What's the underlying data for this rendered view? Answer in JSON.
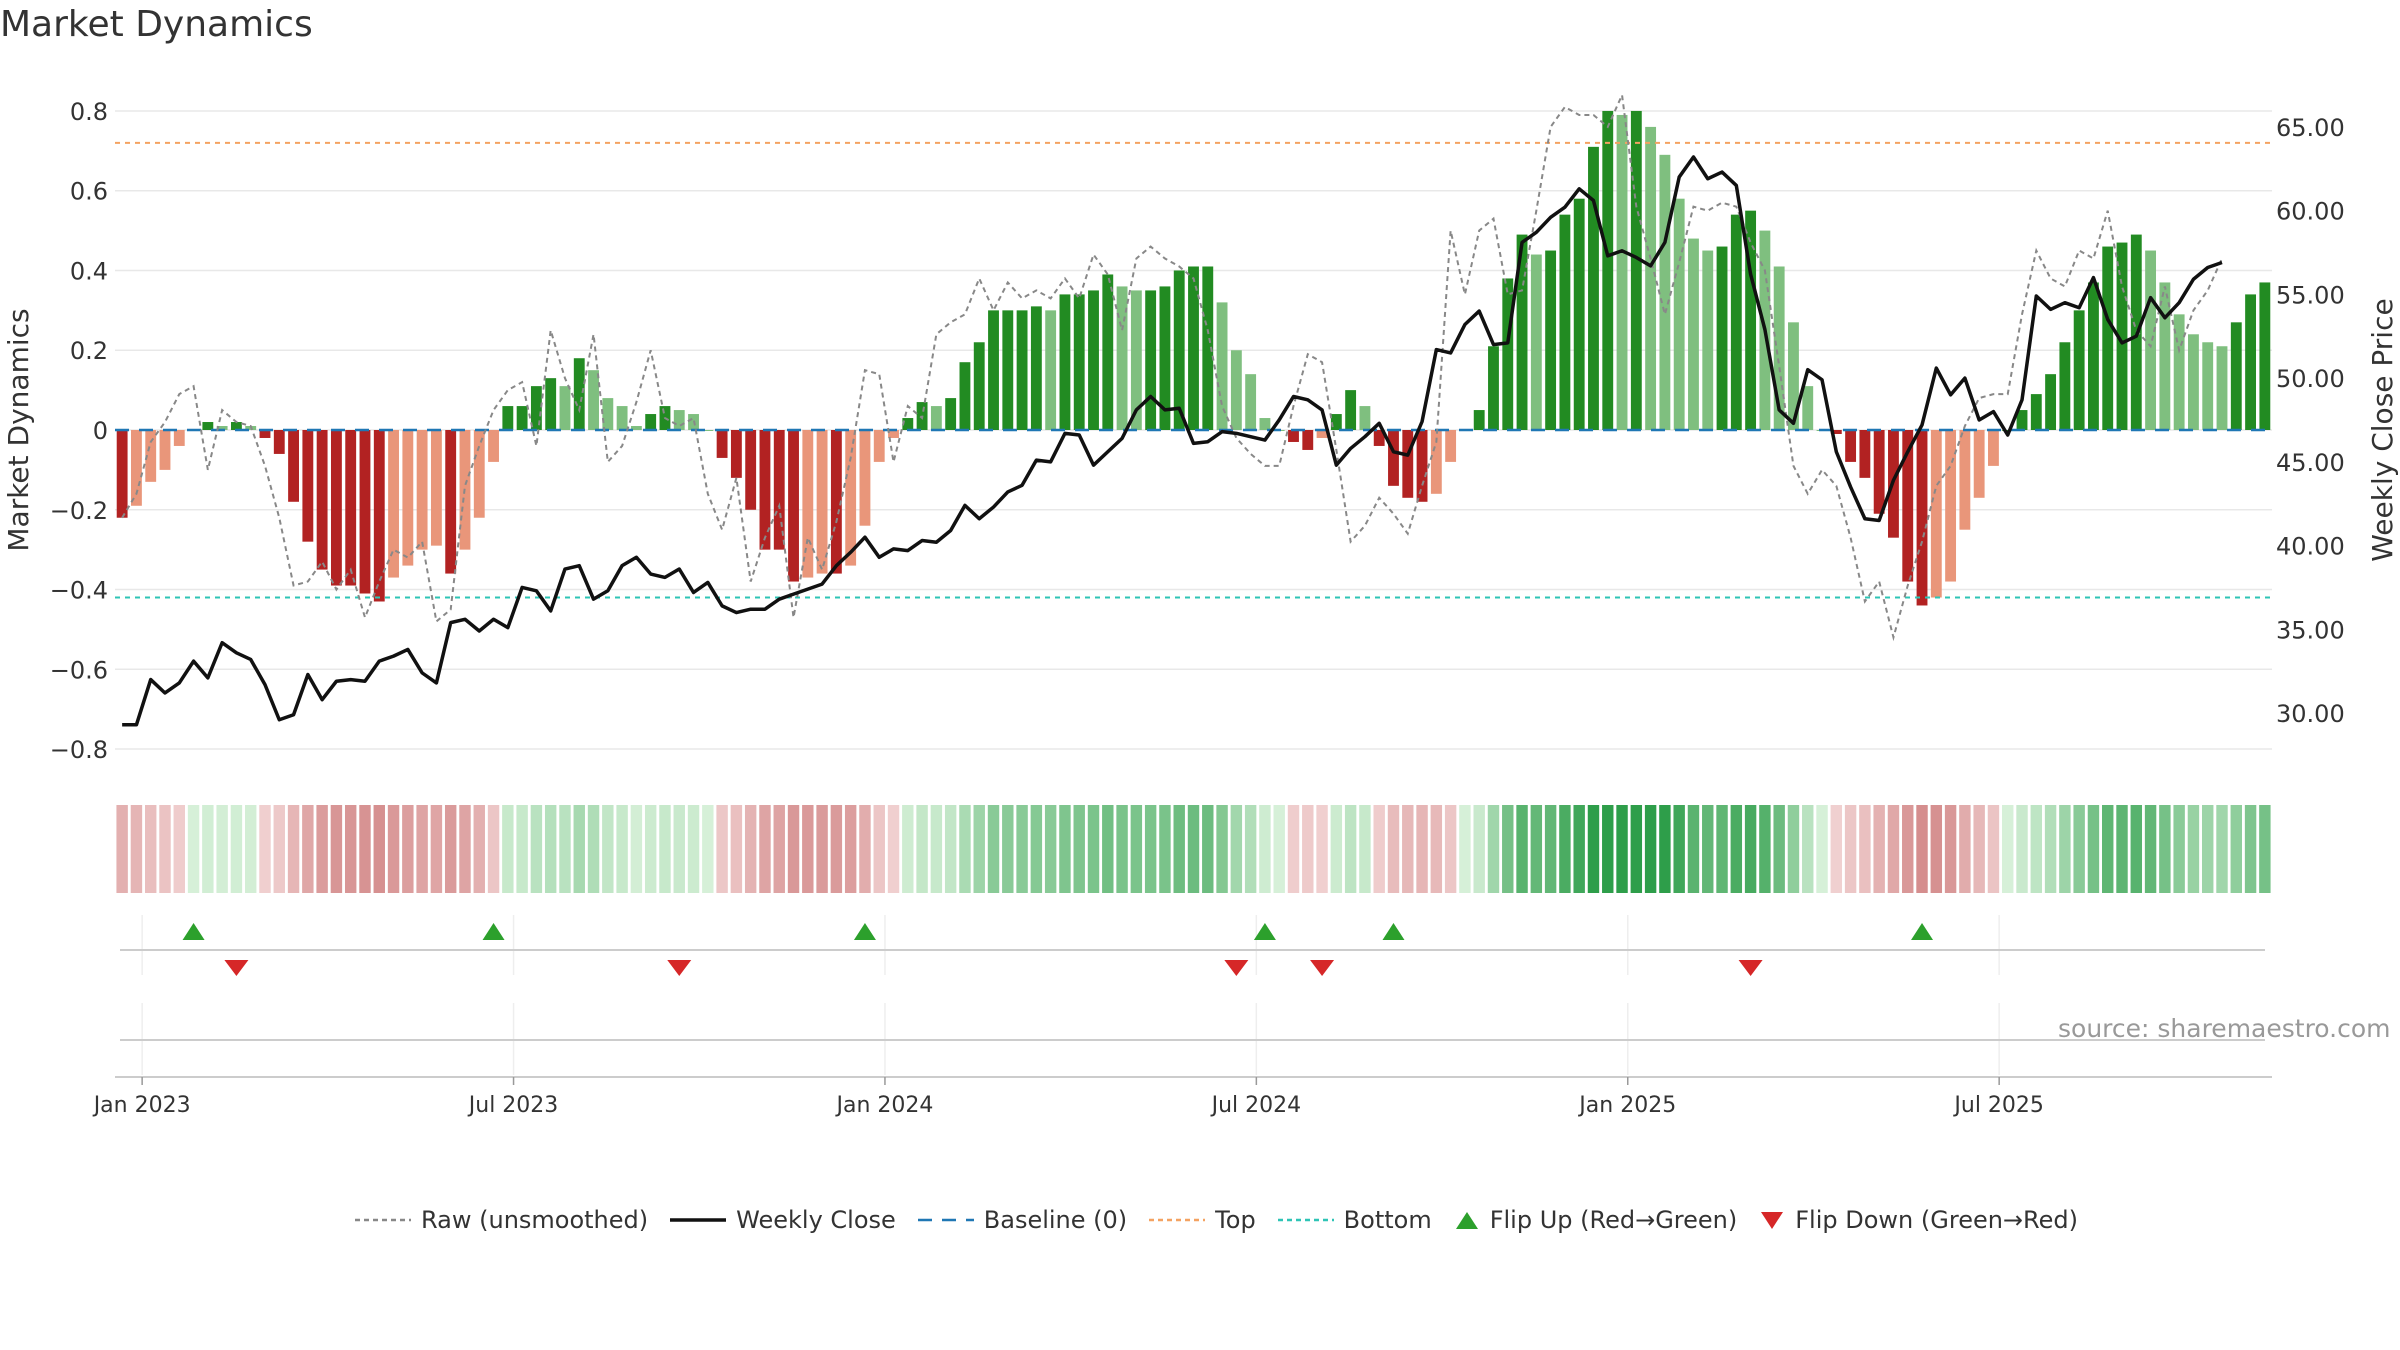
{
  "title": "Market Dynamics",
  "source": "source: sharemaestro.com",
  "colors": {
    "strong_green": "#228b22",
    "light_green": "#7fbf7f",
    "strong_red": "#b22222",
    "light_red": "#e9967a",
    "raw": "#888888",
    "close": "#111111",
    "baseline": "#1f77b4",
    "top": "#f4a261",
    "bottom": "#2ec4b6",
    "flip_up": "#2ca02c",
    "flip_down": "#d62728"
  },
  "legend": [
    {
      "key": "raw",
      "label": "Raw (unsmoothed)",
      "symbol": "dotted"
    },
    {
      "key": "close",
      "label": "Weekly Close",
      "symbol": "solid"
    },
    {
      "key": "baseline",
      "label": "Baseline (0)",
      "symbol": "dashed"
    },
    {
      "key": "top",
      "label": "Top",
      "symbol": "dotted"
    },
    {
      "key": "bottom",
      "label": "Bottom",
      "symbol": "dotted"
    },
    {
      "key": "flip_up",
      "label": "Flip Up (Red→Green)",
      "symbol": "up"
    },
    {
      "key": "flip_down",
      "label": "Flip Down (Green→Red)",
      "symbol": "down"
    }
  ],
  "chart_data": {
    "type": "bar",
    "ylabel": "Market Dynamics",
    "y2label": "Weekly Close Price",
    "ylim": [
      -0.84,
      0.84
    ],
    "y2lim": [
      26.9,
      66.9
    ],
    "yticks": [
      -0.8,
      -0.6,
      -0.4,
      -0.2,
      0,
      0.2,
      0.4,
      0.6,
      0.8
    ],
    "y2ticks": [
      30,
      35,
      40,
      45,
      50,
      55,
      60,
      65
    ],
    "xticks": [
      "Jan 2023",
      "Jul 2023",
      "Jan 2024",
      "Jul 2024",
      "Jan 2025",
      "Jul 2025"
    ],
    "xtick_weeks": [
      0,
      26,
      52,
      78,
      104,
      130
    ],
    "x_start": "2022-12-26",
    "top_level": 0.72,
    "bottom_level": -0.42,
    "baseline": 0,
    "grid": true,
    "legend_position": "bottom",
    "dynamics": [
      -0.22,
      -0.19,
      -0.13,
      -0.1,
      -0.04,
      0.0,
      0.02,
      0.01,
      0.02,
      0.01,
      -0.02,
      -0.06,
      -0.18,
      -0.28,
      -0.35,
      -0.39,
      -0.39,
      -0.41,
      -0.43,
      -0.37,
      -0.34,
      -0.3,
      -0.29,
      -0.36,
      -0.3,
      -0.22,
      -0.08,
      0.06,
      0.06,
      0.11,
      0.13,
      0.11,
      0.18,
      0.15,
      0.08,
      0.06,
      0.01,
      0.04,
      0.06,
      0.05,
      0.04,
      0.0,
      -0.07,
      -0.12,
      -0.2,
      -0.3,
      -0.3,
      -0.38,
      -0.37,
      -0.36,
      -0.36,
      -0.34,
      -0.24,
      -0.08,
      -0.02,
      0.03,
      0.07,
      0.06,
      0.08,
      0.17,
      0.22,
      0.3,
      0.3,
      0.3,
      0.31,
      0.3,
      0.34,
      0.34,
      0.35,
      0.39,
      0.36,
      0.35,
      0.35,
      0.36,
      0.4,
      0.41,
      0.41,
      0.32,
      0.2,
      0.14,
      0.03,
      0.0,
      -0.03,
      -0.05,
      -0.02,
      0.04,
      0.1,
      0.06,
      -0.04,
      -0.14,
      -0.17,
      -0.18,
      -0.16,
      -0.08,
      0.0,
      0.05,
      0.21,
      0.38,
      0.49,
      0.44,
      0.45,
      0.54,
      0.58,
      0.71,
      0.8,
      0.79,
      0.8,
      0.76,
      0.69,
      0.58,
      0.48,
      0.45,
      0.46,
      0.54,
      0.55,
      0.5,
      0.41,
      0.27,
      0.11,
      0.0,
      -0.01,
      -0.08,
      -0.12,
      -0.21,
      -0.27,
      -0.38,
      -0.44,
      -0.42,
      -0.38,
      -0.25,
      -0.17,
      -0.09,
      0.0,
      0.05,
      0.09,
      0.14,
      0.22,
      0.3,
      0.37,
      0.46,
      0.47,
      0.49,
      0.45,
      0.37,
      0.29,
      0.24,
      0.22,
      0.21,
      0.27,
      0.34,
      0.37
    ],
    "raw": [
      -0.22,
      -0.16,
      -0.03,
      0.02,
      0.09,
      0.11,
      -0.1,
      0.05,
      0.02,
      0.01,
      -0.09,
      -0.22,
      -0.39,
      -0.38,
      -0.33,
      -0.4,
      -0.35,
      -0.47,
      -0.38,
      -0.3,
      -0.32,
      -0.28,
      -0.48,
      -0.45,
      -0.14,
      -0.04,
      0.05,
      0.1,
      0.12,
      -0.04,
      0.25,
      0.13,
      0.05,
      0.24,
      -0.08,
      -0.04,
      0.07,
      0.2,
      0.03,
      0.01,
      0.03,
      -0.16,
      -0.25,
      -0.12,
      -0.38,
      -0.27,
      -0.19,
      -0.47,
      -0.27,
      -0.35,
      -0.23,
      -0.07,
      0.15,
      0.14,
      -0.08,
      0.06,
      0.03,
      0.24,
      0.27,
      0.29,
      0.38,
      0.3,
      0.37,
      0.33,
      0.35,
      0.33,
      0.38,
      0.33,
      0.44,
      0.39,
      0.25,
      0.43,
      0.46,
      0.43,
      0.41,
      0.38,
      0.25,
      0.06,
      -0.02,
      -0.06,
      -0.09,
      -0.09,
      0.06,
      0.19,
      0.17,
      -0.05,
      -0.28,
      -0.24,
      -0.17,
      -0.21,
      -0.26,
      -0.14,
      -0.03,
      0.5,
      0.34,
      0.5,
      0.53,
      0.34,
      0.35,
      0.55,
      0.76,
      0.81,
      0.79,
      0.79,
      0.76,
      0.84,
      0.56,
      0.43,
      0.29,
      0.42,
      0.56,
      0.55,
      0.57,
      0.56,
      0.47,
      0.4,
      0.16,
      -0.09,
      -0.16,
      -0.1,
      -0.14,
      -0.27,
      -0.43,
      -0.38,
      -0.52,
      -0.39,
      -0.28,
      -0.14,
      -0.09,
      0.01,
      0.08,
      0.09,
      0.09,
      0.29,
      0.45,
      0.38,
      0.36,
      0.45,
      0.43,
      0.55,
      0.36,
      0.25,
      0.21,
      0.36,
      0.2,
      0.3,
      0.35,
      0.43
    ]
  },
  "close_data": {
    "label": "Weekly Close",
    "prices": [
      29.3,
      29.3,
      32.0,
      31.2,
      31.8,
      33.1,
      32.1,
      34.2,
      33.6,
      33.2,
      31.7,
      29.6,
      29.9,
      32.3,
      30.8,
      31.9,
      32.0,
      31.9,
      33.1,
      33.4,
      33.8,
      32.4,
      31.8,
      35.4,
      35.6,
      34.9,
      35.6,
      35.1,
      37.5,
      37.3,
      36.1,
      38.6,
      38.8,
      36.8,
      37.3,
      38.8,
      39.3,
      38.3,
      38.1,
      38.6,
      37.2,
      37.8,
      36.4,
      36.0,
      36.2,
      36.2,
      36.8,
      37.1,
      37.4,
      37.7,
      38.8,
      39.6,
      40.5,
      39.3,
      39.8,
      39.7,
      40.3,
      40.2,
      40.9,
      42.4,
      41.6,
      42.3,
      43.2,
      43.6,
      45.1,
      45.0,
      46.7,
      46.6,
      44.8,
      45.6,
      46.4,
      48.1,
      48.9,
      48.1,
      48.2,
      46.1,
      46.2,
      46.8,
      46.7,
      46.5,
      46.3,
      47.5,
      48.9,
      48.7,
      48.1,
      44.8,
      45.8,
      46.5,
      47.3,
      45.6,
      45.4,
      47.4,
      51.7,
      51.5,
      53.2,
      54.0,
      52.0,
      52.1,
      58.1,
      58.7,
      59.6,
      60.2,
      61.3,
      60.6,
      57.3,
      57.6,
      57.2,
      56.7,
      58.1,
      62.0,
      63.2,
      61.9,
      62.3,
      61.5,
      56.2,
      52.9,
      48.1,
      47.3,
      50.5,
      49.9,
      45.6,
      43.5,
      41.6,
      41.5,
      43.9,
      45.6,
      47.2,
      50.6,
      49.0,
      50.0,
      47.5,
      48.0,
      46.6,
      48.7,
      54.9,
      54.1,
      54.5,
      54.2,
      56.0,
      53.5,
      52.1,
      52.5,
      54.8,
      53.6,
      54.5,
      55.9,
      56.6,
      56.9
    ]
  },
  "colorbar_data": {
    "intensity": [
      0.34,
      0.29,
      0.2,
      0.15,
      0.06,
      0.0,
      0.03,
      0.02,
      0.03,
      0.02,
      0.03,
      0.09,
      0.28,
      0.43,
      0.54,
      0.6,
      0.6,
      0.63,
      0.66,
      0.57,
      0.52,
      0.46,
      0.45,
      0.55,
      0.46,
      0.34,
      0.12,
      0.09,
      0.09,
      0.17,
      0.2,
      0.17,
      0.28,
      0.23,
      0.12,
      0.09,
      0.02,
      0.06,
      0.09,
      0.08,
      0.06,
      0.0,
      0.11,
      0.18,
      0.31,
      0.46,
      0.46,
      0.58,
      0.57,
      0.55,
      0.55,
      0.52,
      0.37,
      0.12,
      0.03,
      0.05,
      0.11,
      0.09,
      0.12,
      0.26,
      0.34,
      0.46,
      0.46,
      0.46,
      0.48,
      0.46,
      0.52,
      0.52,
      0.54,
      0.6,
      0.55,
      0.54,
      0.54,
      0.55,
      0.62,
      0.63,
      0.63,
      0.49,
      0.31,
      0.22,
      0.05,
      0.0,
      0.05,
      0.08,
      0.03,
      0.06,
      0.15,
      0.09,
      0.06,
      0.22,
      0.26,
      0.28,
      0.25,
      0.12,
      0.0,
      0.08,
      0.32,
      0.58,
      0.75,
      0.68,
      0.69,
      0.83,
      0.89,
      1.0,
      1.0,
      1.0,
      1.0,
      1.0,
      1.0,
      0.89,
      0.74,
      0.69,
      0.71,
      0.83,
      0.85,
      0.77,
      0.63,
      0.42,
      0.17,
      0.0,
      0.02,
      0.12,
      0.18,
      0.32,
      0.42,
      0.58,
      0.68,
      0.65,
      0.58,
      0.38,
      0.26,
      0.14,
      0.0,
      0.08,
      0.14,
      0.22,
      0.34,
      0.46,
      0.57,
      0.71,
      0.72,
      0.75,
      0.69,
      0.57,
      0.45,
      0.37,
      0.34,
      0.32,
      0.42,
      0.52,
      0.57
    ]
  },
  "flips": {
    "up_weeks": [
      5,
      26,
      52,
      80,
      89,
      126
    ],
    "down_weeks": [
      8,
      39,
      78,
      84,
      114
    ]
  }
}
